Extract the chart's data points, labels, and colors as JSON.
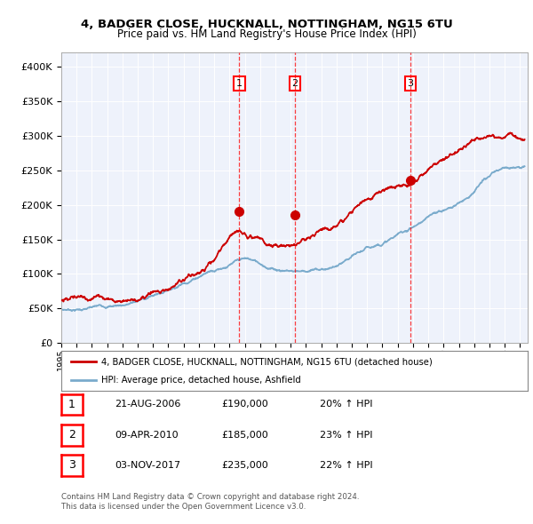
{
  "title1": "4, BADGER CLOSE, HUCKNALL, NOTTINGHAM, NG15 6TU",
  "title2": "Price paid vs. HM Land Registry's House Price Index (HPI)",
  "ylim": [
    0,
    420000
  ],
  "yticks": [
    0,
    50000,
    100000,
    150000,
    200000,
    250000,
    300000,
    350000,
    400000
  ],
  "xlim_start": 1995.0,
  "xlim_end": 2025.5,
  "legend_line1": "4, BADGER CLOSE, HUCKNALL, NOTTINGHAM, NG15 6TU (detached house)",
  "legend_line2": "HPI: Average price, detached house, Ashfield",
  "red_color": "#cc0000",
  "blue_color": "#7aabcc",
  "sale_dates": [
    2006.64,
    2010.27,
    2017.84
  ],
  "sale_prices": [
    190000,
    185000,
    235000
  ],
  "sale_labels": [
    "1",
    "2",
    "3"
  ],
  "sale_info": [
    [
      "1",
      "21-AUG-2006",
      "£190,000",
      "20% ↑ HPI"
    ],
    [
      "2",
      "09-APR-2010",
      "£185,000",
      "23% ↑ HPI"
    ],
    [
      "3",
      "03-NOV-2017",
      "£235,000",
      "22% ↑ HPI"
    ]
  ],
  "footer1": "Contains HM Land Registry data © Crown copyright and database right 2024.",
  "footer2": "This data is licensed under the Open Government Licence v3.0.",
  "background_color": "#eef2fb"
}
